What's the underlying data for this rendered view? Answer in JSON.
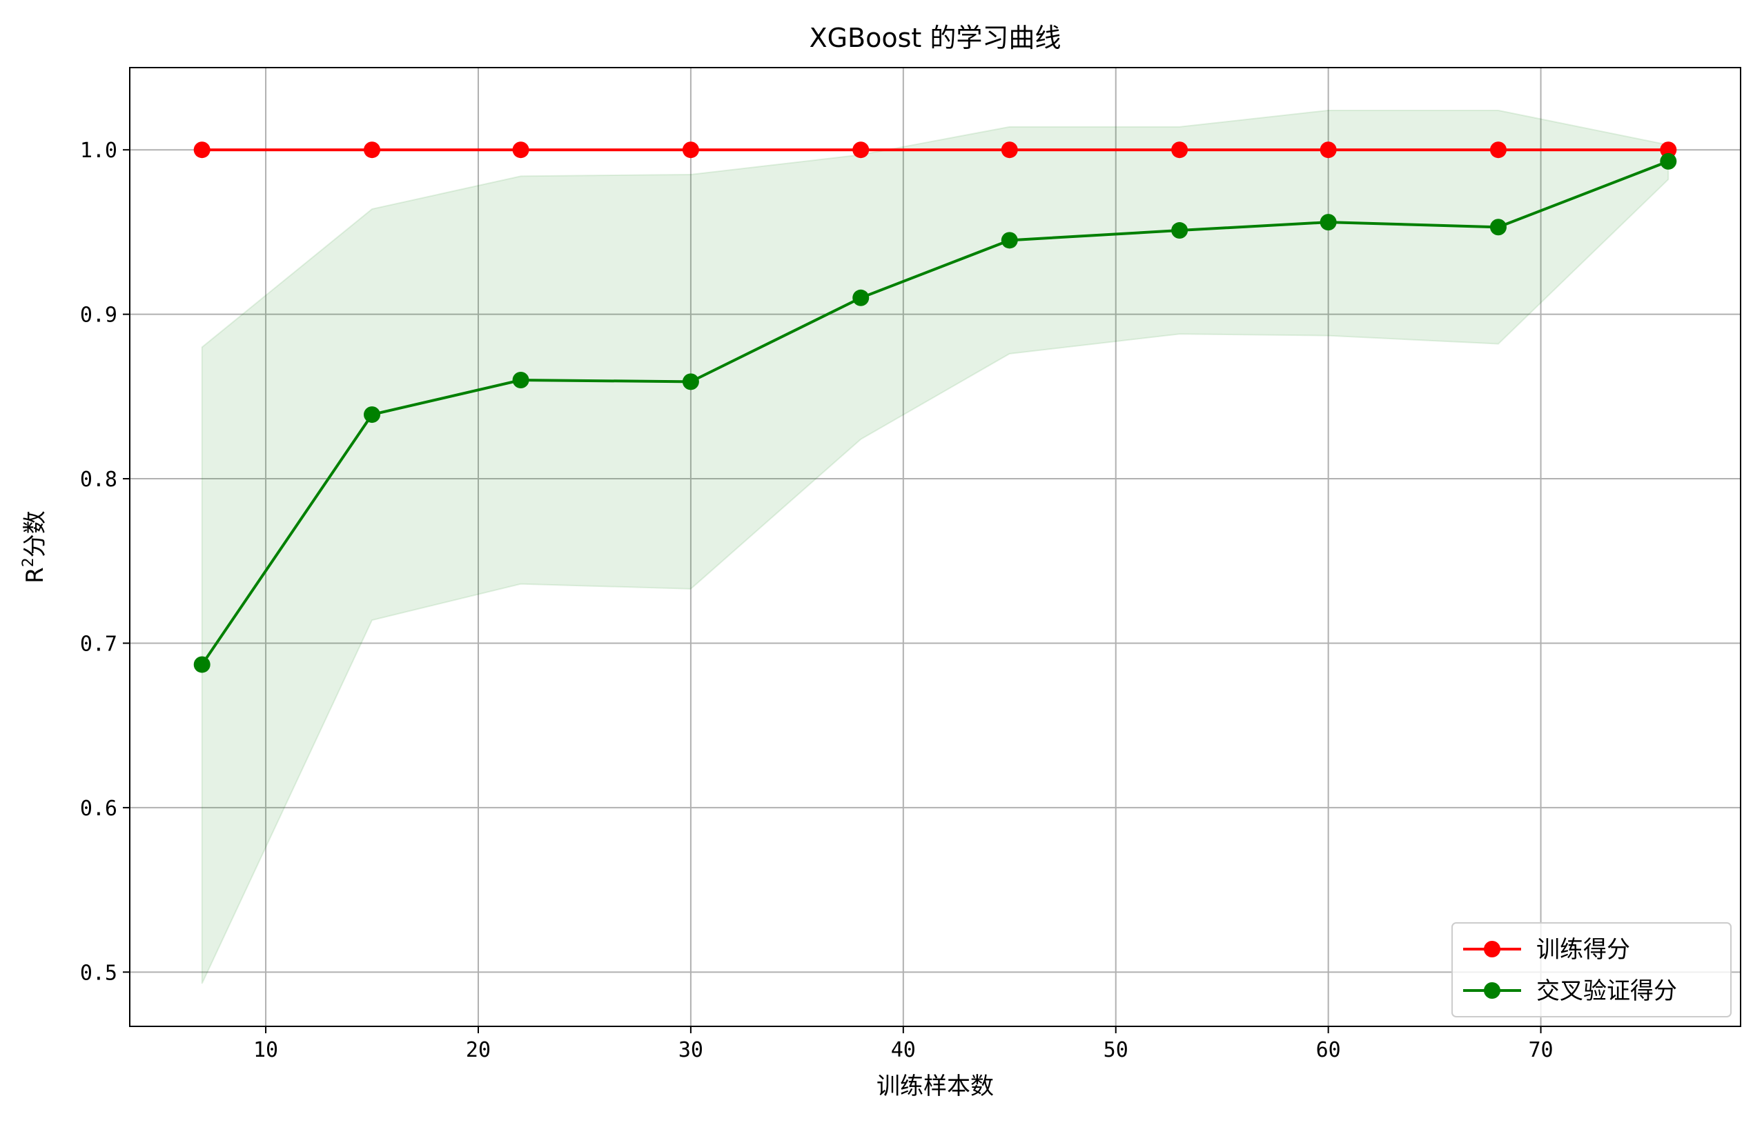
{
  "chart_data": {
    "type": "line",
    "title": "XGBoost 的学习曲线",
    "xlabel": "训练样本数",
    "ylabel_base": "R",
    "ylabel_sup": "2",
    "ylabel_rest": "分数",
    "xlim": [
      3.6,
      79.4
    ],
    "ylim": [
      0.467,
      1.05
    ],
    "xticks": [
      10,
      20,
      30,
      40,
      50,
      60,
      70
    ],
    "yticks": [
      0.5,
      0.6,
      0.7,
      0.8,
      0.9,
      1.0
    ],
    "ytick_labels": [
      "0.5",
      "0.6",
      "0.7",
      "0.8",
      "0.9",
      "1.0"
    ],
    "grid": true,
    "legend_position": "lower-right",
    "x": [
      7,
      15,
      22,
      30,
      38,
      45,
      53,
      60,
      68,
      76
    ],
    "series": [
      {
        "name": "训练得分",
        "color": "#ff0000",
        "marker": "circle",
        "values": [
          1.0,
          1.0,
          1.0,
          1.0,
          1.0,
          1.0,
          1.0,
          1.0,
          1.0,
          1.0
        ]
      },
      {
        "name": "交叉验证得分",
        "color": "#008000",
        "marker": "circle",
        "values": [
          0.687,
          0.839,
          0.86,
          0.859,
          0.91,
          0.945,
          0.951,
          0.956,
          0.953,
          0.993
        ],
        "band": {
          "color": "#008000",
          "opacity": 0.1,
          "upper": [
            0.88,
            0.964,
            0.984,
            0.985,
            0.997,
            1.014,
            1.014,
            1.024,
            1.024,
            1.003
          ],
          "lower": [
            0.493,
            0.714,
            0.736,
            0.733,
            0.824,
            0.876,
            0.888,
            0.887,
            0.882,
            0.982
          ]
        }
      }
    ]
  }
}
